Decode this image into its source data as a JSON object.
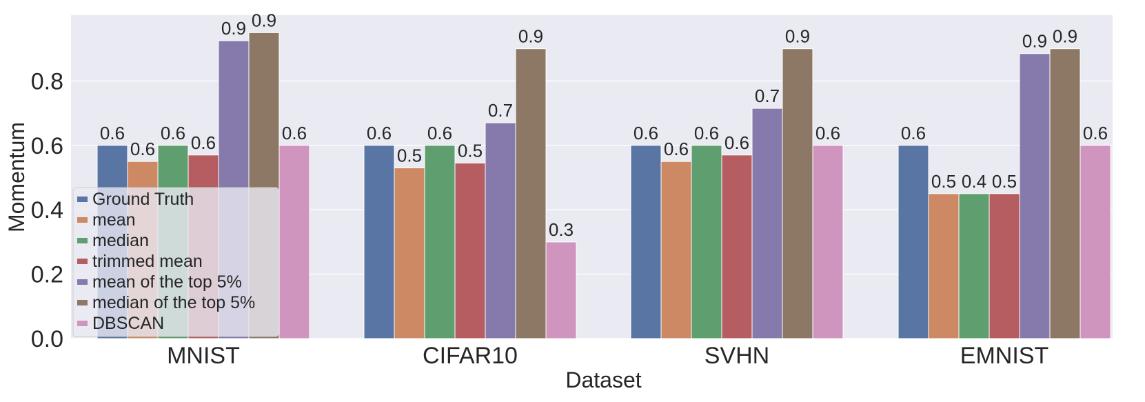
{
  "chart_data": {
    "type": "bar",
    "title": "",
    "xlabel": "Dataset",
    "ylabel": "Momentum",
    "categories": [
      "MNIST",
      "CIFAR10",
      "SVHN",
      "EMNIST"
    ],
    "ylim": [
      0,
      1.0
    ],
    "yticks": [
      0.0,
      0.2,
      0.4,
      0.6,
      0.8
    ],
    "ytick_labels": [
      "0.0",
      "0.2",
      "0.4",
      "0.6",
      "0.8"
    ],
    "grid": true,
    "legend_position": "lower-left",
    "series": [
      {
        "name": "Ground Truth",
        "color": "#5875a4",
        "values": [
          0.6,
          0.6,
          0.6,
          0.6
        ],
        "labels": [
          "0.6",
          "0.6",
          "0.6",
          "0.6"
        ]
      },
      {
        "name": "mean",
        "color": "#cc8963",
        "values": [
          0.55,
          0.53,
          0.55,
          0.45
        ],
        "labels": [
          "0.6",
          "0.5",
          "0.6",
          "0.5"
        ]
      },
      {
        "name": "median",
        "color": "#5f9e6e",
        "values": [
          0.6,
          0.6,
          0.6,
          0.45
        ],
        "labels": [
          "0.6",
          "0.6",
          "0.6",
          "0.4"
        ]
      },
      {
        "name": "trimmed mean",
        "color": "#b55d60",
        "values": [
          0.57,
          0.545,
          0.57,
          0.45
        ],
        "labels": [
          "0.6",
          "0.5",
          "0.6",
          "0.5"
        ]
      },
      {
        "name": "mean of the top 5%",
        "color": "#857aab",
        "values": [
          0.925,
          0.67,
          0.715,
          0.885
        ],
        "labels": [
          "0.9",
          "0.7",
          "0.7",
          "0.9"
        ]
      },
      {
        "name": "median of the top 5%",
        "color": "#8d7866",
        "values": [
          0.95,
          0.9,
          0.9,
          0.9
        ],
        "labels": [
          "0.9",
          "0.9",
          "0.9",
          "0.9"
        ]
      },
      {
        "name": "DBSCAN",
        "color": "#d095bf",
        "values": [
          0.6,
          0.3,
          0.6,
          0.6
        ],
        "labels": [
          "0.6",
          "0.3",
          "0.6",
          "0.6"
        ]
      }
    ],
    "colors": {
      "background": "#eaeaf2",
      "grid": "#ffffff",
      "text": "#262626"
    }
  }
}
